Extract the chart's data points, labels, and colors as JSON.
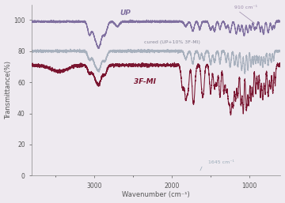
{
  "xlabel": "Wavenumber (cm⁻¹)",
  "ylabel": "Transmittance(%)",
  "xlim": [
    3800,
    600
  ],
  "ylim": [
    0,
    110
  ],
  "yticks": [
    0,
    20,
    40,
    60,
    80,
    100
  ],
  "xticks": [
    3000,
    2000,
    1000
  ],
  "background_color": "#eeeaf0",
  "UP_color": "#8070a0",
  "cured_color": "#a0aab8",
  "modifier_color": "#7a1530",
  "annotation_910": "910 cm⁻¹",
  "annotation_1645": "1645 cm⁻¹",
  "label_UP": "UP",
  "label_cured": "cured (UP+10% 3F-MI)",
  "label_3FMI": "3F-MI"
}
